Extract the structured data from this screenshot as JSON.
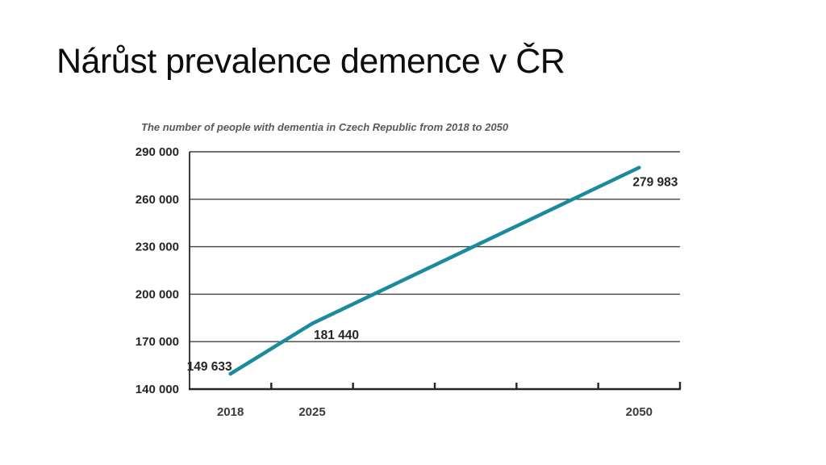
{
  "slide": {
    "title": "Nárůst prevalence demence v ČR",
    "background": "#ffffff"
  },
  "chart_data": {
    "type": "line",
    "title": "The number of people with dementia in Czech Republic from 2018 to 2050",
    "x_slots": 6,
    "points": [
      {
        "slot": 0,
        "x_label": "2018",
        "value": 149633,
        "value_label": "149 633"
      },
      {
        "slot": 1,
        "x_label": "2025",
        "value": 181440,
        "value_label": "181 440"
      },
      {
        "slot": 5,
        "x_label": "2050",
        "value": 279983,
        "value_label": "279 983"
      }
    ],
    "y_ticks": [
      {
        "value": 140000,
        "label": "140 000"
      },
      {
        "value": 170000,
        "label": "170 000"
      },
      {
        "value": 200000,
        "label": "200 000"
      },
      {
        "value": 230000,
        "label": "230 000"
      },
      {
        "value": 260000,
        "label": "260 000"
      },
      {
        "value": 290000,
        "label": "290 000"
      }
    ],
    "ylim": [
      140000,
      290000
    ],
    "grid": "horizontal",
    "legend": "none",
    "colors": {
      "line": "#1b8a9e",
      "gridline": "#404040",
      "axis": "#262626",
      "tick_label": "#3a3a3a",
      "data_label": "#262626",
      "subtitle": "#595959",
      "title": "#0d0d0d"
    }
  }
}
